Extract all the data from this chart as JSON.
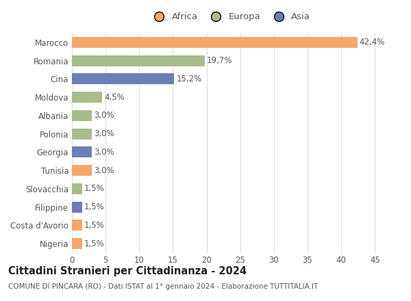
{
  "countries": [
    "Marocco",
    "Romania",
    "Cina",
    "Moldova",
    "Albania",
    "Polonia",
    "Georgia",
    "Tunisia",
    "Slovacchia",
    "Filippine",
    "Costa d'Avorio",
    "Nigeria"
  ],
  "values": [
    42.4,
    19.7,
    15.2,
    4.5,
    3.0,
    3.0,
    3.0,
    3.0,
    1.5,
    1.5,
    1.5,
    1.5
  ],
  "labels": [
    "42,4%",
    "19,7%",
    "15,2%",
    "4,5%",
    "3,0%",
    "3,0%",
    "3,0%",
    "3,0%",
    "1,5%",
    "1,5%",
    "1,5%",
    "1,5%"
  ],
  "colors": [
    "#F4A76A",
    "#A8BC8A",
    "#6B7EB8",
    "#A8BC8A",
    "#A8BC8A",
    "#A8BC8A",
    "#6B7EB8",
    "#F4A76A",
    "#A8BC8A",
    "#6B7EB8",
    "#F4A76A",
    "#F4A76A"
  ],
  "legend_labels": [
    "Africa",
    "Europa",
    "Asia"
  ],
  "legend_colors": [
    "#F4A76A",
    "#A8BC8A",
    "#6B7EB8"
  ],
  "title": "Cittadini Stranieri per Cittadinanza - 2024",
  "subtitle1": "COMUNE DI PINCARA (RO) - Dati ISTAT al 1° gennaio 2024 - Elaborazione TUTTITALIA.IT",
  "xlabel_ticks": [
    0,
    5,
    10,
    15,
    20,
    25,
    30,
    35,
    40,
    45
  ],
  "xlim": [
    0,
    47
  ],
  "background_color": "#ffffff",
  "grid_color": "#dddddd",
  "bar_height": 0.6,
  "label_fontsize": 8.5,
  "tick_fontsize": 8.5,
  "title_fontsize": 10.5,
  "subtitle_fontsize": 7.5
}
